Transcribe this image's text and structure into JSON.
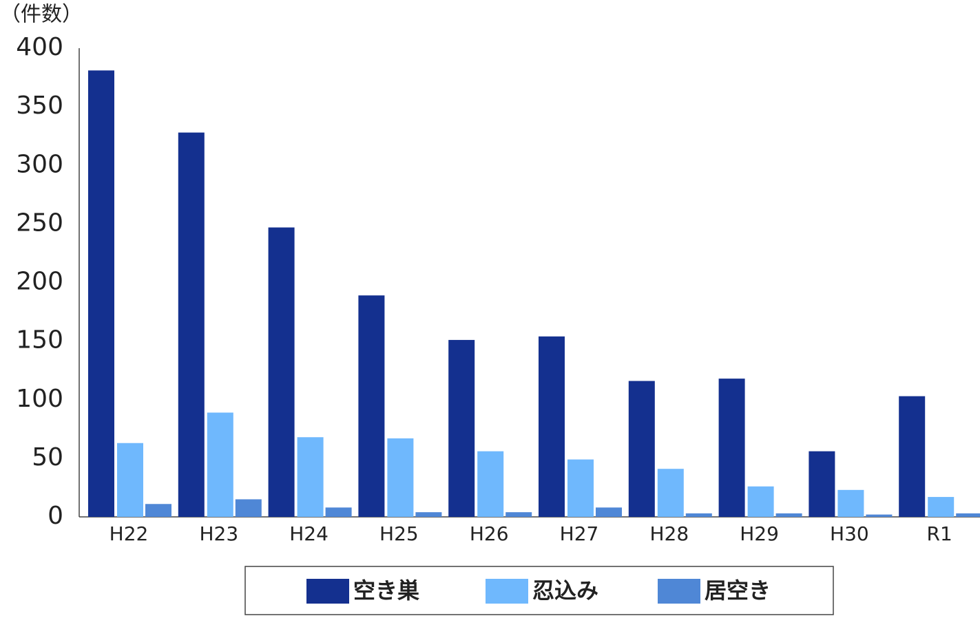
{
  "chart_data": {
    "type": "bar",
    "y_label": "（件数）",
    "categories": [
      "H22",
      "H23",
      "H24",
      "H25",
      "H26",
      "H27",
      "H28",
      "H29",
      "H30",
      "R1"
    ],
    "series": [
      {
        "name": "空き巣",
        "color": "#14308f",
        "values": [
          381,
          328,
          247,
          189,
          151,
          154,
          116,
          118,
          56,
          103
        ]
      },
      {
        "name": "忍込み",
        "color": "#6fb8fd",
        "values": [
          63,
          89,
          68,
          67,
          56,
          49,
          41,
          26,
          23,
          17
        ]
      },
      {
        "name": "居空き",
        "color": "#4f87d6",
        "values": [
          11,
          15,
          8,
          4,
          4,
          8,
          3,
          3,
          2,
          3
        ]
      }
    ],
    "ylim": [
      0,
      400
    ],
    "yticks": [
      0,
      50,
      100,
      150,
      200,
      250,
      300,
      350,
      400
    ],
    "grid": false
  }
}
